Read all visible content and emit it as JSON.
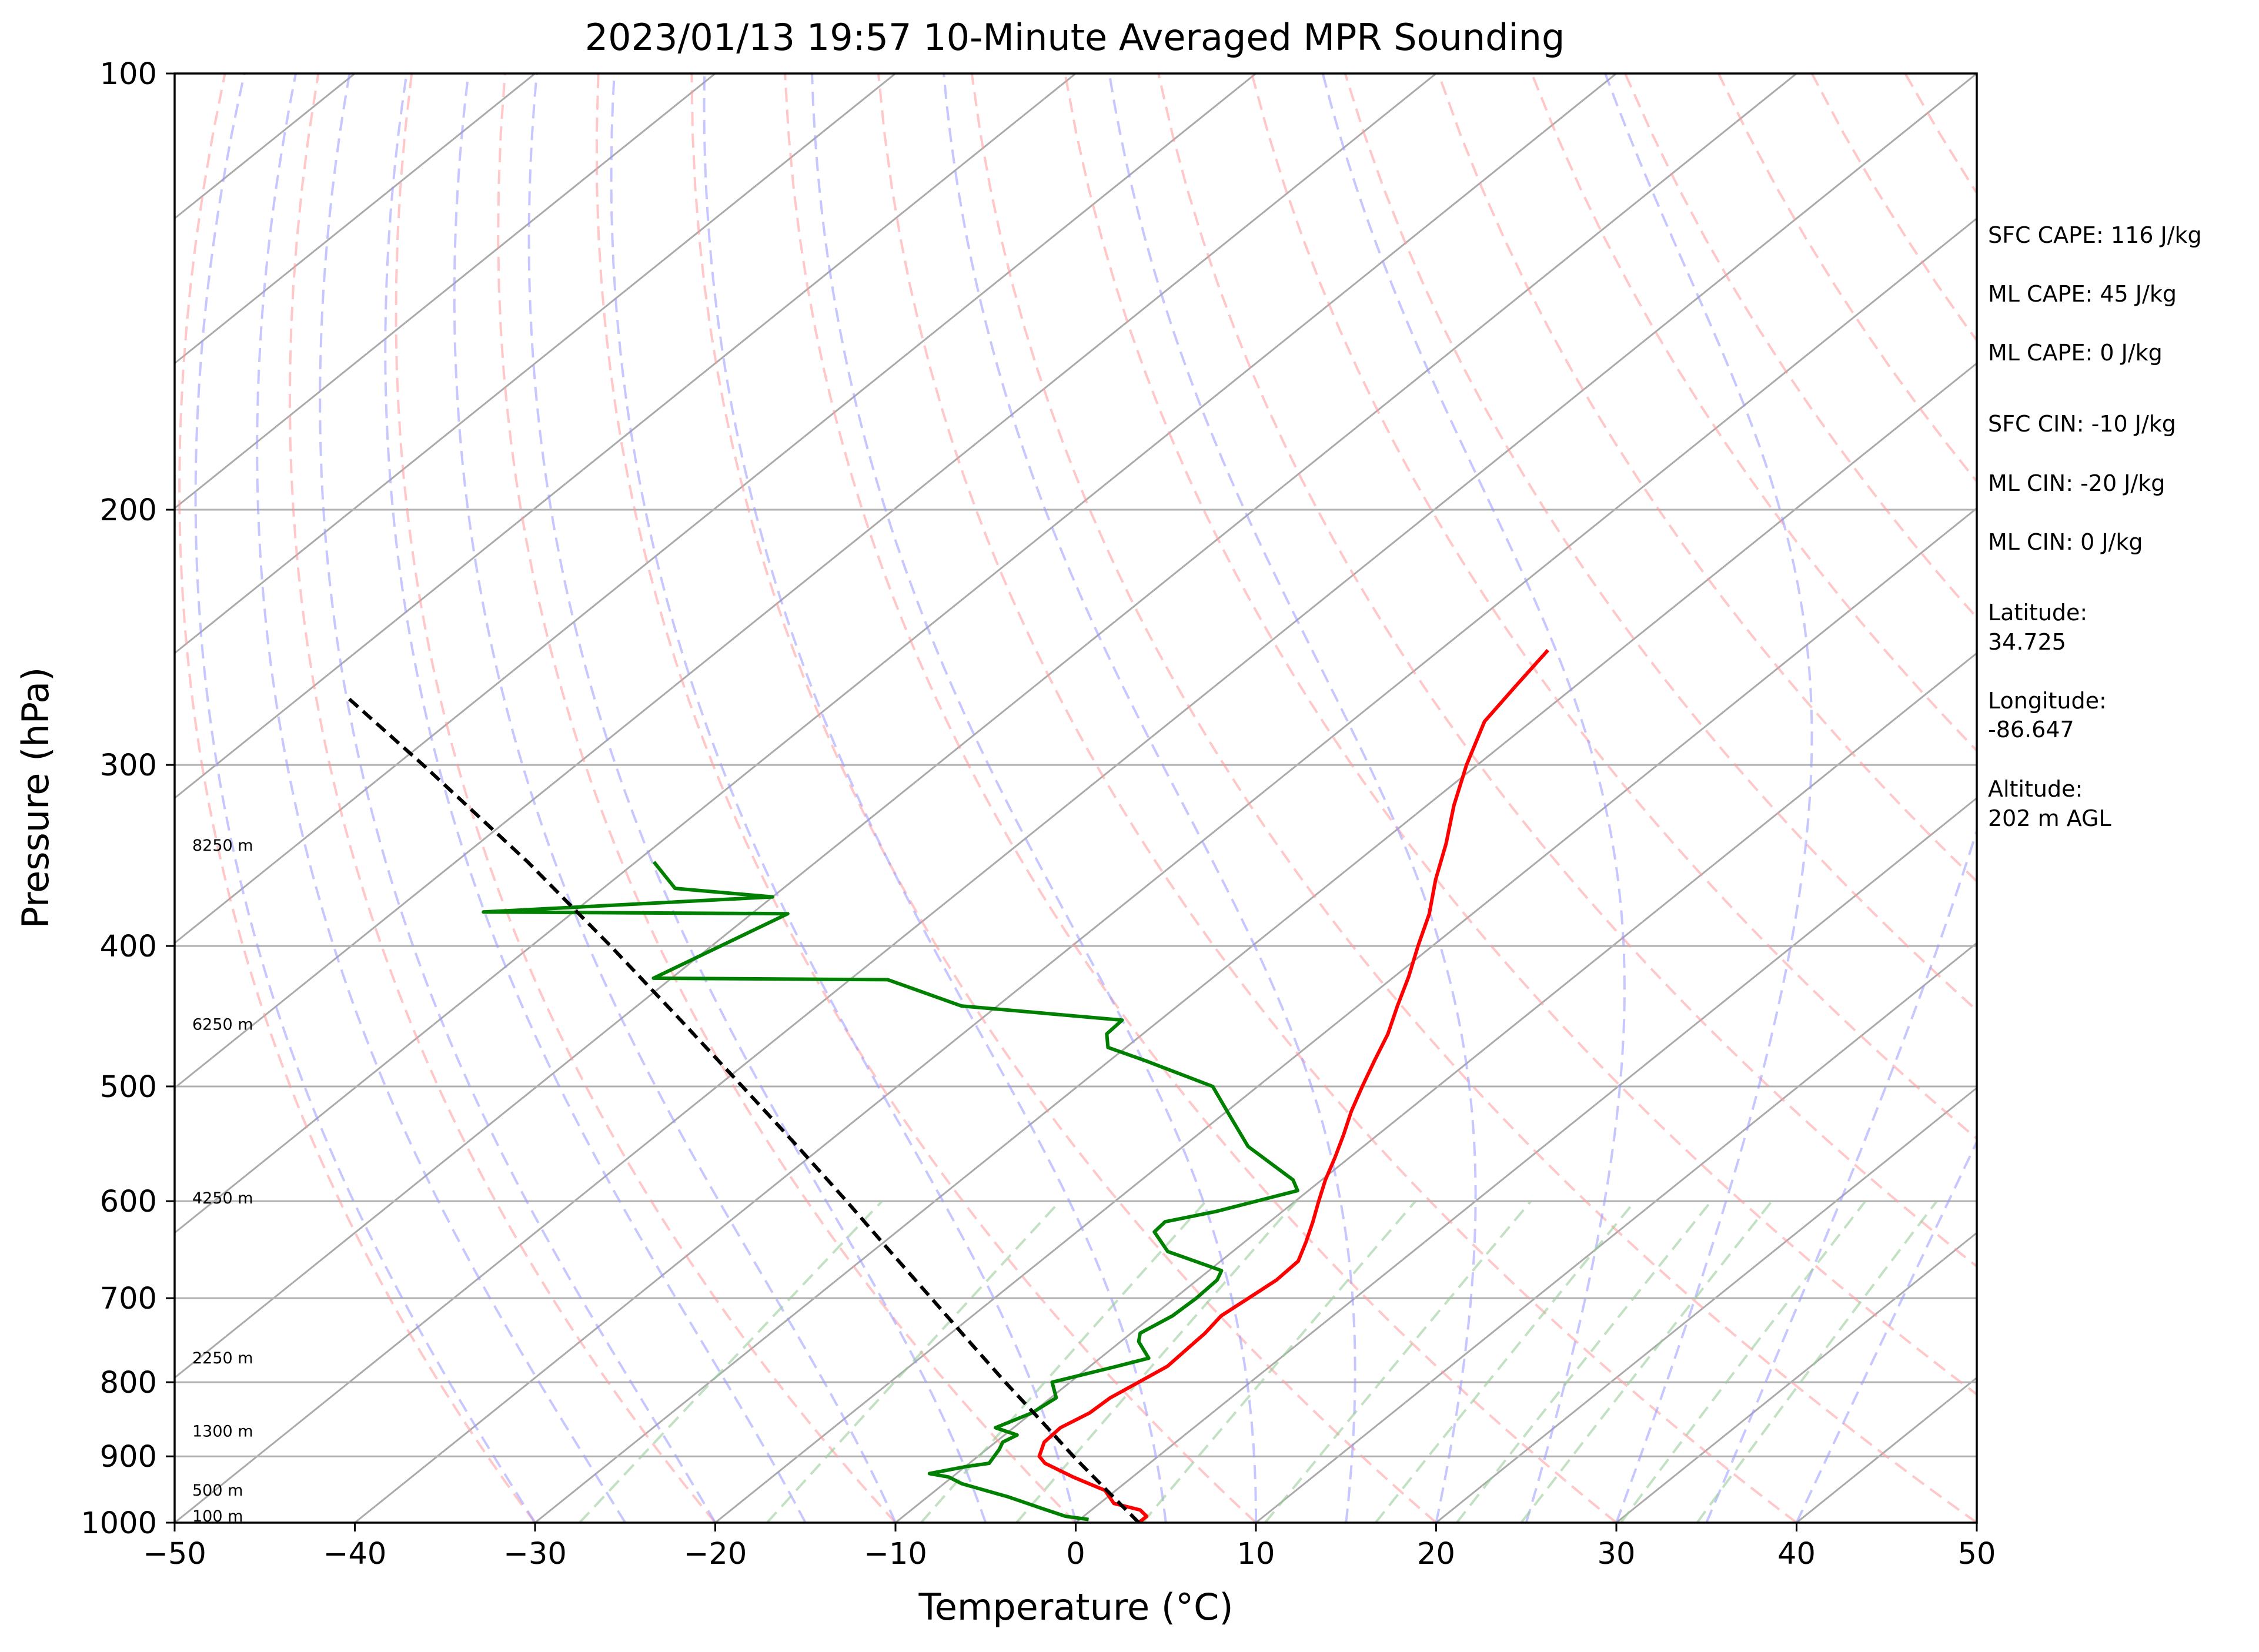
{
  "chart_data": {
    "type": "line",
    "subtype": "skew-T log-P diagram",
    "title": "2023/01/13 19:57 10-Minute Averaged MPR Sounding",
    "xlabel": "Temperature (°C)",
    "ylabel": "Pressure (hPa)",
    "xlim": [
      -50,
      50
    ],
    "ylim": [
      1000,
      100
    ],
    "y_scale": "log",
    "x_ticks": [
      "−50",
      "−40",
      "−30",
      "−20",
      "−10",
      "0",
      "10",
      "20",
      "30",
      "40",
      "50"
    ],
    "x_tick_values": [
      -50,
      -40,
      -30,
      -20,
      -10,
      0,
      10,
      20,
      30,
      40,
      50
    ],
    "y_ticks": [
      "100",
      "200",
      "300",
      "400",
      "500",
      "600",
      "700",
      "800",
      "900",
      "1000"
    ],
    "y_tick_values": [
      100,
      200,
      300,
      400,
      500,
      600,
      700,
      800,
      900,
      1000
    ],
    "grid": true,
    "series": [
      {
        "key": "temperature",
        "color": "#ff0000",
        "points": [
          [
            1000,
            3.5
          ],
          [
            990,
            3.5
          ],
          [
            980,
            2.7
          ],
          [
            970,
            0.8
          ],
          [
            950,
            -0.6
          ],
          [
            930,
            -3.3
          ],
          [
            910,
            -5.8
          ],
          [
            900,
            -6.6
          ],
          [
            880,
            -7.3
          ],
          [
            860,
            -7.4
          ],
          [
            840,
            -6.8
          ],
          [
            820,
            -6.7
          ],
          [
            800,
            -6.2
          ],
          [
            780,
            -5.7
          ],
          [
            760,
            -5.8
          ],
          [
            740,
            -5.9
          ],
          [
            720,
            -6.2
          ],
          [
            700,
            -5.9
          ],
          [
            680,
            -5.6
          ],
          [
            660,
            -5.7
          ],
          [
            640,
            -6.6
          ],
          [
            620,
            -7.6
          ],
          [
            600,
            -8.7
          ],
          [
            580,
            -9.8
          ],
          [
            560,
            -10.8
          ],
          [
            540,
            -11.9
          ],
          [
            520,
            -13.1
          ],
          [
            500,
            -14.2
          ],
          [
            480,
            -15.3
          ],
          [
            460,
            -16.4
          ],
          [
            440,
            -17.8
          ],
          [
            420,
            -19.2
          ],
          [
            400,
            -20.8
          ],
          [
            380,
            -22.4
          ],
          [
            360,
            -24.4
          ],
          [
            340,
            -26.3
          ],
          [
            320,
            -28.5
          ],
          [
            300,
            -30.6
          ],
          [
            280,
            -32.6
          ],
          [
            265,
            -33.3
          ],
          [
            250,
            -34.0
          ]
        ]
      },
      {
        "key": "dewpoint",
        "color": "#008000",
        "points": [
          [
            995,
            0.5
          ],
          [
            990,
            -1.0
          ],
          [
            980,
            -2.5
          ],
          [
            960,
            -5.5
          ],
          [
            940,
            -9.0
          ],
          [
            930,
            -10.2
          ],
          [
            925,
            -11.5
          ],
          [
            915,
            -10.0
          ],
          [
            910,
            -8.9
          ],
          [
            890,
            -9.3
          ],
          [
            880,
            -9.6
          ],
          [
            870,
            -9.3
          ],
          [
            860,
            -11.0
          ],
          [
            840,
            -10.0
          ],
          [
            820,
            -9.7
          ],
          [
            800,
            -11.0
          ],
          [
            780,
            -8.5
          ],
          [
            770,
            -7.3
          ],
          [
            750,
            -9.0
          ],
          [
            740,
            -9.5
          ],
          [
            720,
            -8.9
          ],
          [
            700,
            -8.8
          ],
          [
            680,
            -8.9
          ],
          [
            670,
            -9.3
          ],
          [
            650,
            -13.6
          ],
          [
            630,
            -15.7
          ],
          [
            620,
            -15.8
          ],
          [
            610,
            -13.7
          ],
          [
            590,
            -10.6
          ],
          [
            580,
            -11.6
          ],
          [
            550,
            -16.4
          ],
          [
            520,
            -20.0
          ],
          [
            500,
            -22.5
          ],
          [
            480,
            -28.0
          ],
          [
            470,
            -31.0
          ],
          [
            460,
            -32.0
          ],
          [
            450,
            -32.1
          ],
          [
            440,
            -42.0
          ],
          [
            422,
            -47.9
          ],
          [
            421,
            -61.0
          ],
          [
            380,
            -58.0
          ],
          [
            379,
            -75.0
          ],
          [
            370,
            -60.0
          ],
          [
            365,
            -66.0
          ],
          [
            350,
            -69.0
          ]
        ]
      },
      {
        "key": "parcel",
        "color": "#000000",
        "dashed": true,
        "points": [
          [
            1000,
            3.5
          ],
          [
            950,
            -0.5
          ],
          [
            900,
            -4.7
          ],
          [
            850,
            -9.0
          ],
          [
            800,
            -13.6
          ],
          [
            750,
            -18.4
          ],
          [
            700,
            -23.5
          ],
          [
            650,
            -29.0
          ],
          [
            600,
            -34.9
          ],
          [
            550,
            -41.4
          ],
          [
            500,
            -48.6
          ],
          [
            450,
            -56.6
          ],
          [
            400,
            -65.6
          ],
          [
            350,
            -76.0
          ],
          [
            300,
            -88.5
          ],
          [
            270,
            -97.2
          ]
        ]
      }
    ],
    "height_labels": [
      {
        "text": "100 m",
        "pressure": 990
      },
      {
        "text": "500 m",
        "pressure": 950
      },
      {
        "text": "1300 m",
        "pressure": 865
      },
      {
        "text": "2250 m",
        "pressure": 770
      },
      {
        "text": "4250 m",
        "pressure": 597
      },
      {
        "text": "6250 m",
        "pressure": 453
      },
      {
        "text": "8250 m",
        "pressure": 341
      }
    ],
    "background_lines": {
      "dry_adiabat_color": "#ff9999",
      "moist_adiabat_color": "#9999ff",
      "mixing_ratio_color": "#99cc99",
      "isotherm_color": "#aaaaaa"
    }
  },
  "info_panel": {
    "sfc_cape": "SFC CAPE: 116 J/kg",
    "ml_cape_1": "ML CAPE: 45 J/kg",
    "ml_cape_2": "ML CAPE: 0 J/kg",
    "sfc_cin": "SFC CIN: -10 J/kg",
    "ml_cin_1": "ML CIN: -20 J/kg",
    "ml_cin_2": "ML CIN: 0 J/kg",
    "latitude_label": "Latitude:",
    "latitude_value": "34.725",
    "longitude_label": "Longitude:",
    "longitude_value": "-86.647",
    "altitude_label": "Altitude:",
    "altitude_value": "202 m AGL"
  }
}
